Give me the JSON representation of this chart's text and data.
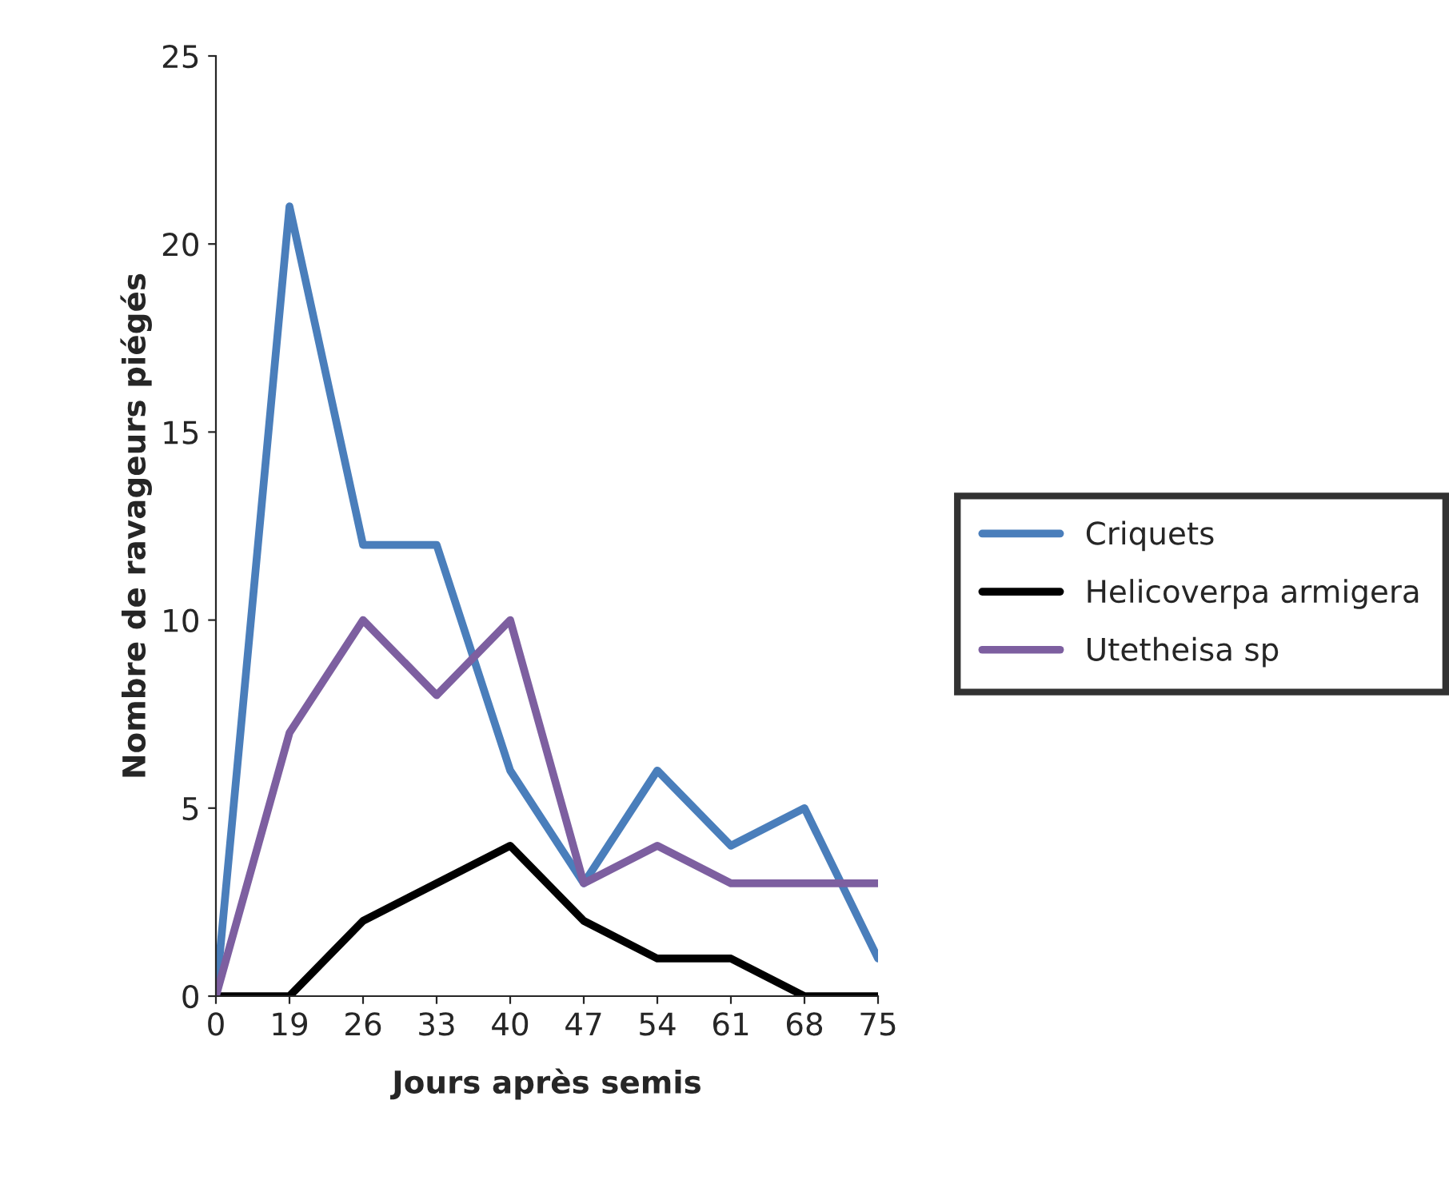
{
  "chart_data": {
    "type": "line",
    "xlabel": "Jours après semis",
    "ylabel": "Nombre de ravageurs piégés",
    "categories": [
      "0",
      "19",
      "26",
      "33",
      "40",
      "47",
      "54",
      "61",
      "68",
      "75"
    ],
    "series": [
      {
        "name": "Criquets",
        "color": "#4a7ebb",
        "values": [
          0,
          21,
          12,
          12,
          6,
          3,
          6,
          4,
          5,
          1
        ]
      },
      {
        "name": "Helicoverpa armigera",
        "color": "#000000",
        "values": [
          0,
          0,
          2,
          3,
          4,
          2,
          1,
          1,
          0,
          0
        ]
      },
      {
        "name": "Utetheisa sp",
        "color": "#7d5fa0",
        "values": [
          0,
          7,
          10,
          8,
          10,
          3,
          4,
          3,
          3,
          3
        ]
      }
    ],
    "ylim": [
      0,
      25
    ],
    "yticks": [
      0,
      5,
      10,
      15,
      20,
      25
    ],
    "grid": false,
    "legend": "right",
    "marker": "none",
    "line_style": "solid"
  }
}
